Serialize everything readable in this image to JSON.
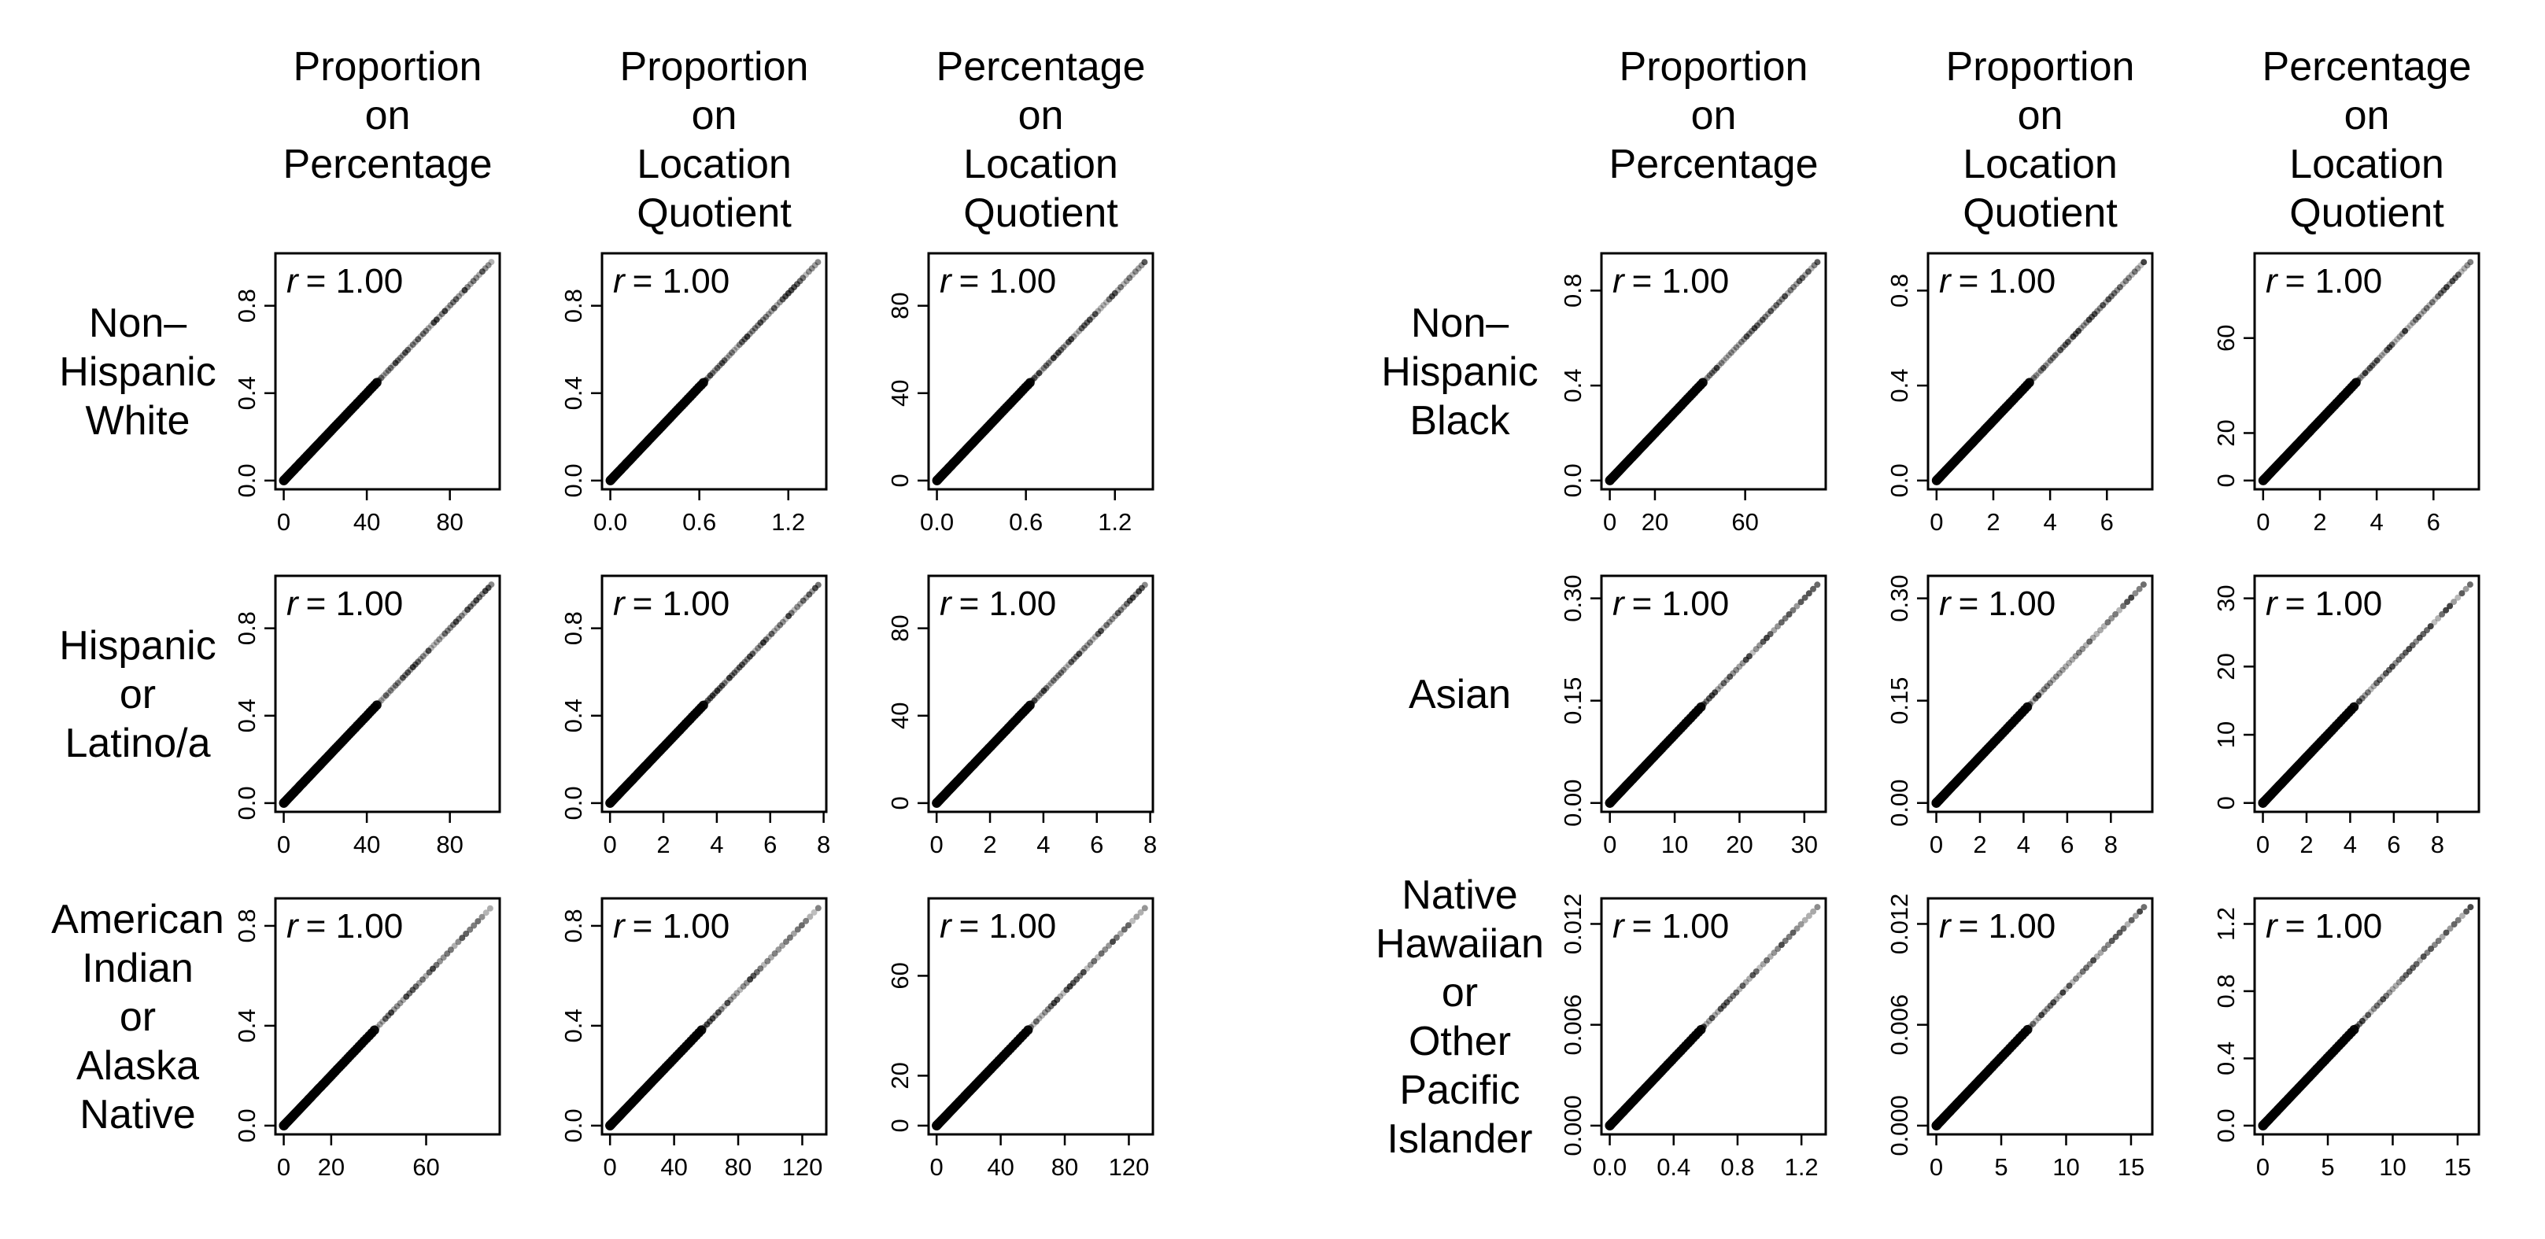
{
  "column_titles": {
    "left": [
      [
        "Proportion",
        "on",
        "Percentage"
      ],
      [
        "Proportion",
        "on",
        "Location",
        "Quotient"
      ],
      [
        "Percentage",
        "on",
        "Location",
        "Quotient"
      ]
    ],
    "right": [
      [
        "Proportion",
        "on",
        "Percentage"
      ],
      [
        "Proportion",
        "on",
        "Location",
        "Quotient"
      ],
      [
        "Percentage",
        "on",
        "Location",
        "Quotient"
      ]
    ]
  },
  "row_labels": {
    "left": [
      [
        "Non–",
        "Hispanic",
        "White"
      ],
      [
        "Hispanic",
        "or",
        "Latino/a"
      ],
      [
        "American",
        "Indian",
        "or",
        "Alaska",
        "Native"
      ]
    ],
    "right": [
      [
        "Non–",
        "Hispanic",
        "Black"
      ],
      [
        "Asian"
      ],
      [
        "Native",
        "Hawaiian",
        "or",
        "Other",
        "Pacific",
        "Islander"
      ]
    ]
  },
  "chart_data": [
    {
      "type": "scatter",
      "group": "Non–Hispanic White",
      "pair": "Proportion on Percentage",
      "r_label": "r",
      "r_value": "= 1.00",
      "x_ticks": [
        "0",
        "40",
        "80"
      ],
      "x_tick_values": [
        0,
        40,
        80
      ],
      "xlim": [
        -4,
        104
      ],
      "y_ticks": [
        "0.0",
        "0.4",
        "0.8"
      ],
      "y_tick_values": [
        0,
        0.4,
        0.8
      ],
      "ylim": [
        -0.04,
        1.04
      ],
      "x_max": 100,
      "slope": 0.01
    },
    {
      "type": "scatter",
      "group": "Non–Hispanic White",
      "pair": "Proportion on Location Quotient",
      "r_label": "r",
      "r_value": "= 1.00",
      "x_ticks": [
        "0.0",
        "0.6",
        "1.2"
      ],
      "x_tick_values": [
        0,
        0.6,
        1.2
      ],
      "xlim": [
        -0.056,
        1.456
      ],
      "y_ticks": [
        "0.0",
        "0.4",
        "0.8"
      ],
      "y_tick_values": [
        0,
        0.4,
        0.8
      ],
      "ylim": [
        -0.04,
        1.04
      ],
      "x_max": 1.4,
      "slope": 0.714
    },
    {
      "type": "scatter",
      "group": "Non–Hispanic White",
      "pair": "Percentage on Location Quotient",
      "r_label": "r",
      "r_value": "= 1.00",
      "x_ticks": [
        "0.0",
        "0.6",
        "1.2"
      ],
      "x_tick_values": [
        0,
        0.6,
        1.2
      ],
      "xlim": [
        -0.056,
        1.456
      ],
      "y_ticks": [
        "0",
        "40",
        "80"
      ],
      "y_tick_values": [
        0,
        40,
        80
      ],
      "ylim": [
        -4,
        104
      ],
      "x_max": 1.4,
      "slope": 71.4
    },
    {
      "type": "scatter",
      "group": "Hispanic or Latino/a",
      "pair": "Proportion on Percentage",
      "r_label": "r",
      "r_value": "= 1.00",
      "x_ticks": [
        "0",
        "40",
        "80"
      ],
      "x_tick_values": [
        0,
        40,
        80
      ],
      "xlim": [
        -4,
        104
      ],
      "y_ticks": [
        "0.0",
        "0.4",
        "0.8"
      ],
      "y_tick_values": [
        0,
        0.4,
        0.8
      ],
      "ylim": [
        -0.04,
        1.04
      ],
      "x_max": 100,
      "slope": 0.01
    },
    {
      "type": "scatter",
      "group": "Hispanic or Latino/a",
      "pair": "Proportion on Location Quotient",
      "r_label": "r",
      "r_value": "= 1.00",
      "x_ticks": [
        "0",
        "2",
        "4",
        "6",
        "8"
      ],
      "x_tick_values": [
        0,
        2,
        4,
        6,
        8
      ],
      "xlim": [
        -0.3,
        8.1
      ],
      "y_ticks": [
        "0.0",
        "0.4",
        "0.8"
      ],
      "y_tick_values": [
        0,
        0.4,
        0.8
      ],
      "ylim": [
        -0.04,
        1.04
      ],
      "x_max": 7.8,
      "slope": 0.128
    },
    {
      "type": "scatter",
      "group": "Hispanic or Latino/a",
      "pair": "Percentage on Location Quotient",
      "r_label": "r",
      "r_value": "= 1.00",
      "x_ticks": [
        "0",
        "2",
        "4",
        "6",
        "8"
      ],
      "x_tick_values": [
        0,
        2,
        4,
        6,
        8
      ],
      "xlim": [
        -0.3,
        8.1
      ],
      "y_ticks": [
        "0",
        "40",
        "80"
      ],
      "y_tick_values": [
        0,
        40,
        80
      ],
      "ylim": [
        -4,
        104
      ],
      "x_max": 7.8,
      "slope": 12.8
    },
    {
      "type": "scatter",
      "group": "American Indian or Alaska Native",
      "pair": "Proportion on Percentage",
      "r_label": "r",
      "r_value": "= 1.00",
      "x_ticks": [
        "0",
        "20",
        "60"
      ],
      "x_tick_values": [
        0,
        20,
        60
      ],
      "xlim": [
        -3.5,
        91
      ],
      "y_ticks": [
        "0.0",
        "0.4",
        "0.8"
      ],
      "y_tick_values": [
        0,
        0.4,
        0.8
      ],
      "ylim": [
        -0.035,
        0.91
      ],
      "x_max": 87,
      "slope": 0.01
    },
    {
      "type": "scatter",
      "group": "American Indian or Alaska Native",
      "pair": "Proportion on Location Quotient",
      "r_label": "r",
      "r_value": "= 1.00",
      "x_ticks": [
        "0",
        "40",
        "80",
        "120"
      ],
      "x_tick_values": [
        0,
        40,
        80,
        120
      ],
      "xlim": [
        -5,
        135
      ],
      "y_ticks": [
        "0.0",
        "0.4",
        "0.8"
      ],
      "y_tick_values": [
        0,
        0.4,
        0.8
      ],
      "ylim": [
        -0.035,
        0.91
      ],
      "x_max": 130,
      "slope": 0.0067
    },
    {
      "type": "scatter",
      "group": "American Indian or Alaska Native",
      "pair": "Percentage on Location Quotient",
      "r_label": "r",
      "r_value": "= 1.00",
      "x_ticks": [
        "0",
        "40",
        "80",
        "120"
      ],
      "x_tick_values": [
        0,
        40,
        80,
        120
      ],
      "xlim": [
        -5,
        135
      ],
      "y_ticks": [
        "0",
        "20",
        "60"
      ],
      "y_tick_values": [
        0,
        20,
        60
      ],
      "ylim": [
        -3.5,
        91
      ],
      "x_max": 130,
      "slope": 0.67
    },
    {
      "type": "scatter",
      "group": "Non–Hispanic Black",
      "pair": "Proportion on Percentage",
      "r_label": "r",
      "r_value": "= 1.00",
      "x_ticks": [
        "0",
        "20",
        "60"
      ],
      "x_tick_values": [
        0,
        20,
        60
      ],
      "xlim": [
        -3.7,
        95.7
      ],
      "y_ticks": [
        "0.0",
        "0.4",
        "0.8"
      ],
      "y_tick_values": [
        0,
        0.4,
        0.8
      ],
      "ylim": [
        -0.037,
        0.957
      ],
      "x_max": 92,
      "slope": 0.01
    },
    {
      "type": "scatter",
      "group": "Non–Hispanic Black",
      "pair": "Proportion on Location Quotient",
      "r_label": "r",
      "r_value": "= 1.00",
      "x_ticks": [
        "0",
        "2",
        "4",
        "6"
      ],
      "x_tick_values": [
        0,
        2,
        4,
        6
      ],
      "xlim": [
        -0.3,
        7.6
      ],
      "y_ticks": [
        "0.0",
        "0.4",
        "0.8"
      ],
      "y_tick_values": [
        0,
        0.4,
        0.8
      ],
      "ylim": [
        -0.037,
        0.957
      ],
      "x_max": 7.3,
      "slope": 0.126
    },
    {
      "type": "scatter",
      "group": "Non–Hispanic Black",
      "pair": "Percentage on Location Quotient",
      "r_label": "r",
      "r_value": "= 1.00",
      "x_ticks": [
        "0",
        "2",
        "4",
        "6"
      ],
      "x_tick_values": [
        0,
        2,
        4,
        6
      ],
      "xlim": [
        -0.3,
        7.6
      ],
      "y_ticks": [
        "0",
        "20",
        "60"
      ],
      "y_tick_values": [
        0,
        20,
        60
      ],
      "ylim": [
        -3.7,
        95.7
      ],
      "x_max": 7.3,
      "slope": 12.6
    },
    {
      "type": "scatter",
      "group": "Asian",
      "pair": "Proportion on Percentage",
      "r_label": "r",
      "r_value": "= 1.00",
      "x_ticks": [
        "0",
        "10",
        "20",
        "30"
      ],
      "x_tick_values": [
        0,
        10,
        20,
        30
      ],
      "xlim": [
        -1.3,
        33.3
      ],
      "y_ticks": [
        "0.00",
        "0.15",
        "0.30"
      ],
      "y_tick_values": [
        0,
        0.15,
        0.3
      ],
      "ylim": [
        -0.013,
        0.333
      ],
      "x_max": 32,
      "slope": 0.01
    },
    {
      "type": "scatter",
      "group": "Asian",
      "pair": "Proportion on Location Quotient",
      "r_label": "r",
      "r_value": "= 1.00",
      "x_ticks": [
        "0",
        "2",
        "4",
        "6",
        "8"
      ],
      "x_tick_values": [
        0,
        2,
        4,
        6,
        8
      ],
      "xlim": [
        -0.38,
        9.9
      ],
      "y_ticks": [
        "0.00",
        "0.15",
        "0.30"
      ],
      "y_tick_values": [
        0,
        0.15,
        0.3
      ],
      "ylim": [
        -0.013,
        0.333
      ],
      "x_max": 9.5,
      "slope": 0.0337
    },
    {
      "type": "scatter",
      "group": "Asian",
      "pair": "Percentage on Location Quotient",
      "r_label": "r",
      "r_value": "= 1.00",
      "x_ticks": [
        "0",
        "2",
        "4",
        "6",
        "8"
      ],
      "x_tick_values": [
        0,
        2,
        4,
        6,
        8
      ],
      "xlim": [
        -0.38,
        9.9
      ],
      "y_ticks": [
        "0",
        "10",
        "20",
        "30"
      ],
      "y_tick_values": [
        0,
        10,
        20,
        30
      ],
      "ylim": [
        -1.3,
        33.3
      ],
      "x_max": 9.5,
      "slope": 3.37
    },
    {
      "type": "scatter",
      "group": "Native Hawaiian or Other Pacific Islander",
      "pair": "Proportion on Percentage",
      "r_label": "r",
      "r_value": "= 1.00",
      "x_ticks": [
        "0.0",
        "0.4",
        "0.8",
        "1.2"
      ],
      "x_tick_values": [
        0,
        0.4,
        0.8,
        1.2
      ],
      "xlim": [
        -0.052,
        1.352
      ],
      "y_ticks": [
        "0.000",
        "0.006",
        "0.012"
      ],
      "y_tick_values": [
        0,
        0.006,
        0.012
      ],
      "ylim": [
        -0.00052,
        0.01352
      ],
      "x_max": 1.3,
      "slope": 0.01
    },
    {
      "type": "scatter",
      "group": "Native Hawaiian or Other Pacific Islander",
      "pair": "Proportion on Location Quotient",
      "r_label": "r",
      "r_value": "= 1.00",
      "x_ticks": [
        "0",
        "5",
        "10",
        "15"
      ],
      "x_tick_values": [
        0,
        5,
        10,
        15
      ],
      "xlim": [
        -0.64,
        16.64
      ],
      "y_ticks": [
        "0.000",
        "0.006",
        "0.012"
      ],
      "y_tick_values": [
        0,
        0.006,
        0.012
      ],
      "ylim": [
        -0.00052,
        0.01352
      ],
      "x_max": 16,
      "slope": 0.0008125
    },
    {
      "type": "scatter",
      "group": "Native Hawaiian or Other Pacific Islander",
      "pair": "Percentage on Location Quotient",
      "r_label": "r",
      "r_value": "= 1.00",
      "x_ticks": [
        "0",
        "5",
        "10",
        "15"
      ],
      "x_tick_values": [
        0,
        5,
        10,
        15
      ],
      "xlim": [
        -0.64,
        16.64
      ],
      "y_ticks": [
        "0.0",
        "0.4",
        "0.8",
        "1.2"
      ],
      "y_tick_values": [
        0,
        0.4,
        0.8,
        1.2
      ],
      "ylim": [
        -0.052,
        1.352
      ],
      "x_max": 16,
      "slope": 0.08125
    }
  ]
}
